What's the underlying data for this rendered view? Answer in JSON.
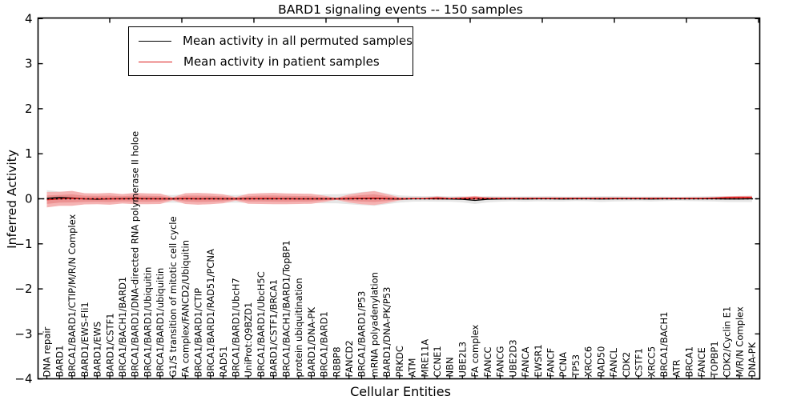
{
  "title": "BARD1 signaling events -- 150 samples",
  "legend": {
    "items": [
      {
        "label": "Mean activity in all permuted samples",
        "color": "#000000"
      },
      {
        "label": "Mean activity in patient samples",
        "color": "#dd1c1c"
      }
    ]
  },
  "axes": {
    "x_label": "Cellular Entities",
    "y_label": "Inferred Activity",
    "y_tick_labels": [
      "4",
      "3",
      "2",
      "1",
      "0",
      "−1",
      "−2",
      "−3",
      "−4"
    ],
    "y_tick_values": [
      4,
      3,
      2,
      1,
      0,
      -1,
      -2,
      -3,
      -4
    ]
  },
  "colors": {
    "permuted_line": "#000000",
    "patient_line": "#dd1c1c",
    "permuted_band": "#e6e6e6",
    "patient_band_outer": "#f5b3b3",
    "patient_band_inner": "#ec9292",
    "zero_line": "#000000",
    "frame": "#000000"
  },
  "chart_data": {
    "type": "line",
    "title": "BARD1 signaling events -- 150 samples",
    "xlabel": "Cellular Entities",
    "ylabel": "Inferred Activity",
    "ylim": [
      -4,
      4
    ],
    "grid": false,
    "legend_position": "upper left",
    "zero_line": {
      "style": "dashed",
      "color": "#000000",
      "y": 0
    },
    "categories": [
      "DNA repair",
      "BARD1",
      "BRCA1/BARD1/CTIP/M/R/N Complex",
      "BARD1/EWS-Fli1",
      "BARD1/EWS",
      "BARD1/CSTF1",
      "BRCA1/BACH1/BARD1",
      "BRCA1/BARD1/DNA-directed RNA polymerase II holoe",
      "BRCA1/BARD1/Ubiquitin",
      "BRCA1/BARD1/ubiquitin",
      "G1/S transition of mitotic cell cycle",
      "FA complex/FANCD2/Ubiquitin",
      "BRCA1/BARD1/CTIP",
      "BRCA1/BARD1/RAD51/PCNA",
      "RAD51",
      "BRCA1/BARD1/UbcH7",
      "UniProt:Q9BZD1",
      "BRCA1/BARD1/UbcH5C",
      "BARD1/CSTF1/BRCA1",
      "BRCA1/BACH1/BARD1/TopBP1",
      "protein ubiquitination",
      "BARD1/DNA-PK",
      "BRCA1/BARD1",
      "RBBP8",
      "FANCD2",
      "BRCA1/BARD1/P53",
      "mRNA polyadenylation",
      "BARD1/DNA-PK/P53",
      "PRKDC",
      "ATM",
      "MRE11A",
      "CCNE1",
      "NBN",
      "UBE2L3",
      "FA complex",
      "FANCC",
      "FANCG",
      "UBE2D3",
      "FANCA",
      "EWSR1",
      "FANCF",
      "PCNA",
      "TP53",
      "XRCC6",
      "RAD50",
      "FANCL",
      "CDK2",
      "CSTF1",
      "XRCC5",
      "BRCA1/BACH1",
      "ATR",
      "BRCA1",
      "FANCE",
      "TOPBP1",
      "CDK2/Cyclin E1",
      "M/R/N Complex",
      "DNA-PK"
    ],
    "series": [
      {
        "name": "Mean activity in all permuted samples",
        "color": "#000000",
        "values": [
          0.01,
          0.03,
          0.02,
          0.0,
          -0.01,
          0.0,
          0.005,
          0.01,
          0.005,
          0.0,
          0.0,
          0.005,
          0.0,
          0.005,
          0.0,
          0.0,
          0.005,
          0.0,
          0.0,
          0.005,
          0.0,
          0.0,
          0.0,
          0.0,
          0.0,
          0.005,
          0.01,
          0.0,
          -0.005,
          0.0,
          0.0,
          0.0,
          -0.005,
          -0.01,
          -0.035,
          -0.01,
          -0.005,
          0.0,
          -0.005,
          0.0,
          0.0,
          -0.005,
          0.0,
          0.0,
          -0.005,
          0.0,
          0.0,
          0.0,
          -0.005,
          0.0,
          0.0,
          0.0,
          0.0,
          0.0,
          -0.005,
          -0.005,
          0.0
        ]
      },
      {
        "name": "Mean activity in patient samples",
        "color": "#dd1c1c",
        "values": [
          -0.02,
          0.0,
          0.01,
          0.0,
          0.0,
          0.0,
          0.0,
          0.005,
          0.0,
          0.0,
          0.0,
          0.005,
          0.0,
          0.0,
          0.0,
          0.0,
          0.0,
          0.005,
          0.005,
          0.0,
          0.0,
          0.0,
          0.0,
          0.0,
          0.005,
          0.01,
          0.015,
          0.005,
          0.0,
          0.005,
          0.005,
          0.015,
          0.005,
          0.01,
          0.015,
          0.01,
          0.01,
          0.01,
          0.01,
          0.01,
          0.01,
          0.01,
          0.01,
          0.01,
          0.01,
          0.01,
          0.01,
          0.01,
          0.01,
          0.01,
          0.01,
          0.01,
          0.01,
          0.015,
          0.025,
          0.03,
          0.03
        ]
      }
    ],
    "bands": [
      {
        "name": "permuted-activity-spread",
        "center_series": 0,
        "color": "#e6e6e6",
        "half_width": [
          0.18,
          0.13,
          0.11,
          0.095,
          0.095,
          0.095,
          0.095,
          0.095,
          0.095,
          0.09,
          0.085,
          0.095,
          0.095,
          0.095,
          0.09,
          0.085,
          0.095,
          0.095,
          0.095,
          0.095,
          0.095,
          0.095,
          0.1,
          0.1,
          0.12,
          0.145,
          0.165,
          0.12,
          0.08,
          0.065,
          0.06,
          0.065,
          0.06,
          0.07,
          0.08,
          0.07,
          0.06,
          0.055,
          0.06,
          0.055,
          0.06,
          0.055,
          0.05,
          0.055,
          0.065,
          0.06,
          0.055,
          0.05,
          0.055,
          0.05,
          0.045,
          0.05,
          0.055,
          0.06,
          0.065,
          0.065,
          0.07
        ]
      },
      {
        "name": "patient-activity-spread-outer",
        "center_series": 1,
        "color": "#f5b3b3",
        "half_width": [
          0.17,
          0.155,
          0.165,
          0.125,
          0.12,
          0.13,
          0.105,
          0.125,
          0.12,
          0.115,
          0.035,
          0.12,
          0.13,
          0.12,
          0.1,
          0.04,
          0.11,
          0.12,
          0.125,
          0.12,
          0.115,
          0.11,
          0.07,
          0.025,
          0.09,
          0.13,
          0.155,
          0.1,
          0.035,
          0.015,
          0.012,
          0.04,
          0.015,
          0.03,
          0.05,
          0.02,
          0.012,
          0.01,
          0.012,
          0.01,
          0.012,
          0.01,
          0.01,
          0.01,
          0.015,
          0.012,
          0.01,
          0.01,
          0.01,
          0.01,
          0.01,
          0.01,
          0.012,
          0.02,
          0.03,
          0.035,
          0.035
        ]
      },
      {
        "name": "patient-activity-spread-inner",
        "center_series": 1,
        "color": "#ec9292",
        "half_width_scale_of": 1,
        "scale": 0.55
      }
    ]
  }
}
